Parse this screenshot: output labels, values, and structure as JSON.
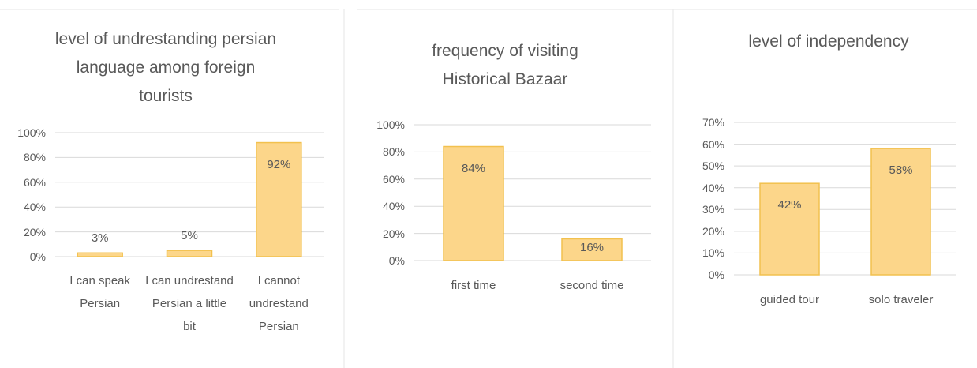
{
  "chart_data": [
    {
      "type": "bar",
      "title": "level of undrestanding persian language among foreign tourists",
      "categories": [
        "I can speak Persian",
        "I can undrestand Persian a little bit",
        "I cannot undrestand Persian"
      ],
      "values": [
        3,
        5,
        92
      ],
      "value_labels": [
        "3%",
        "5%",
        "92%"
      ],
      "color": "#fcd68a",
      "ylim": [
        0,
        100
      ],
      "yticks": [
        {
          "value": 0,
          "label": "0%"
        },
        {
          "value": 20,
          "label": "20%"
        },
        {
          "value": 40,
          "label": "40%"
        },
        {
          "value": 60,
          "label": "60%"
        },
        {
          "value": 80,
          "label": "80%"
        },
        {
          "value": 100,
          "label": "100%"
        }
      ],
      "grid": true
    },
    {
      "type": "bar",
      "title": "frequency of visiting Historical Bazaar",
      "categories": [
        "first time",
        "second time"
      ],
      "values": [
        84,
        16
      ],
      "value_labels": [
        "84%",
        "16%"
      ],
      "color": "#fcd68a",
      "ylim": [
        0,
        100
      ],
      "yticks": [
        {
          "value": 0,
          "label": "0%"
        },
        {
          "value": 20,
          "label": "20%"
        },
        {
          "value": 40,
          "label": "40%"
        },
        {
          "value": 60,
          "label": "60%"
        },
        {
          "value": 80,
          "label": "80%"
        },
        {
          "value": 100,
          "label": "100%"
        }
      ],
      "grid": true
    },
    {
      "type": "bar",
      "title": "level of independency",
      "categories": [
        "guided tour",
        "solo traveler"
      ],
      "values": [
        42,
        58
      ],
      "value_labels": [
        "42%",
        "58%"
      ],
      "color": "#fcd68a",
      "ylim": [
        0,
        70
      ],
      "yticks": [
        {
          "value": 0,
          "label": "0%"
        },
        {
          "value": 10,
          "label": "10%"
        },
        {
          "value": 20,
          "label": "20%"
        },
        {
          "value": 30,
          "label": "30%"
        },
        {
          "value": 40,
          "label": "40%"
        },
        {
          "value": 50,
          "label": "50%"
        },
        {
          "value": 60,
          "label": "60%"
        },
        {
          "value": 70,
          "label": "70%"
        }
      ],
      "grid": true
    }
  ]
}
